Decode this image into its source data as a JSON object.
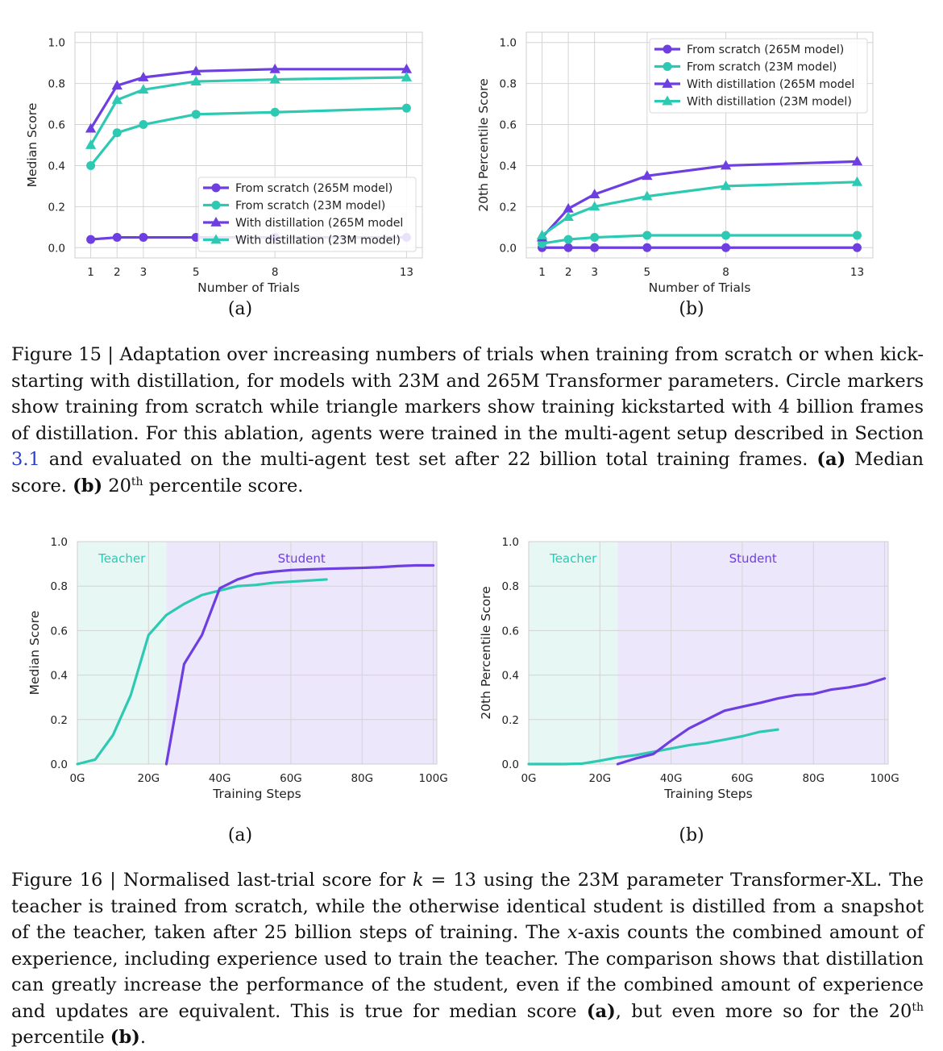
{
  "colors": {
    "purple": "#6e3fe0",
    "teal": "#2ec9b3",
    "teacher_bg": "#e6f7f4",
    "student_bg": "#ede7fb"
  },
  "figure15": {
    "caption": {
      "label": "Figure 15",
      "sep": " | ",
      "text": "Adaptation over increasing numbers of trials when training from scratch or when kick-starting with distillation, for models with 23M and 265M Transformer parameters. Circle markers show training from scratch while triangle markers show training kickstarted with 4 billion frames of distillation. For this ablation, agents were trained in the multi-agent setup described in Section ",
      "ref": "3.1",
      "text2": " and evaluated on the multi-agent test set after 22 billion total training frames. ",
      "a_label": "(a)",
      "a_text": " Median score. ",
      "b_label": "(b)",
      "b_text_pre": " 20",
      "b_sup": "th",
      "b_text_post": " percentile score."
    },
    "panel_a_label": "(a)",
    "panel_b_label": "(b)"
  },
  "figure16": {
    "caption": {
      "p1": "Figure 16 | Normalised last-trial score for ",
      "k": "k",
      "p2": " = 13 using the 23M parameter Transformer-XL. The teacher is trained from scratch, while the otherwise identical student is distilled from a snapshot of the teacher, taken after 25 billion steps of training. The ",
      "x": "x",
      "p3": "-axis counts the combined amount of experience, including experience used to train the teacher. The comparison shows that distillation can greatly increase the performance of the student, even if the combined amount of experience and updates are equivalent. This is true for median score ",
      "a": "(a)",
      "p4": ", but even more so for the 20",
      "sup": "th",
      "p5": " percentile ",
      "b": "(b)",
      "p6": "."
    },
    "panel_a_label": "(a)",
    "panel_b_label": "(b)"
  },
  "chart_data": [
    {
      "id": "fig15a",
      "type": "line",
      "xlabel": "Number of Trials",
      "ylabel": "Median Score",
      "x": [
        1,
        2,
        3,
        5,
        8,
        13
      ],
      "xticks": [
        1,
        2,
        3,
        5,
        8,
        13
      ],
      "xlim": [
        0.4,
        13.6
      ],
      "ylim": [
        -0.05,
        1.05
      ],
      "yticks": [
        "0.0",
        "0.2",
        "0.4",
        "0.6",
        "0.8",
        "1.0"
      ],
      "grid": true,
      "legend_position": "lower-right",
      "series": [
        {
          "name": "From scratch (265M model)",
          "marker": "circle",
          "color": "#6e3fe0",
          "values": [
            0.04,
            0.05,
            0.05,
            0.05,
            0.05,
            0.05
          ]
        },
        {
          "name": "From scratch (23M model)",
          "marker": "circle",
          "color": "#2ec9b3",
          "values": [
            0.4,
            0.56,
            0.6,
            0.65,
            0.66,
            0.68
          ]
        },
        {
          "name": "With distillation (265M model",
          "marker": "triangle",
          "color": "#6e3fe0",
          "values": [
            0.58,
            0.79,
            0.83,
            0.86,
            0.87,
            0.87
          ]
        },
        {
          "name": "With distillation (23M model)",
          "marker": "triangle",
          "color": "#2ec9b3",
          "values": [
            0.5,
            0.72,
            0.77,
            0.81,
            0.82,
            0.83
          ]
        }
      ]
    },
    {
      "id": "fig15b",
      "type": "line",
      "xlabel": "Number of Trials",
      "ylabel": "20th Percentile Score",
      "x": [
        1,
        2,
        3,
        5,
        8,
        13
      ],
      "xticks": [
        1,
        2,
        3,
        5,
        8,
        13
      ],
      "xlim": [
        0.4,
        13.6
      ],
      "ylim": [
        -0.05,
        1.05
      ],
      "yticks": [
        "0.0",
        "0.2",
        "0.4",
        "0.6",
        "0.8",
        "1.0"
      ],
      "grid": true,
      "legend_position": "upper-right",
      "series": [
        {
          "name": "From scratch (265M model)",
          "marker": "circle",
          "color": "#6e3fe0",
          "values": [
            0.0,
            0.0,
            0.0,
            0.0,
            0.0,
            0.0
          ]
        },
        {
          "name": "From scratch (23M model)",
          "marker": "circle",
          "color": "#2ec9b3",
          "values": [
            0.02,
            0.04,
            0.05,
            0.06,
            0.06,
            0.06
          ]
        },
        {
          "name": "With distillation (265M model",
          "marker": "triangle",
          "color": "#6e3fe0",
          "values": [
            0.05,
            0.19,
            0.26,
            0.35,
            0.4,
            0.42
          ]
        },
        {
          "name": "With distillation (23M model)",
          "marker": "triangle",
          "color": "#2ec9b3",
          "values": [
            0.06,
            0.15,
            0.2,
            0.25,
            0.3,
            0.32
          ]
        }
      ]
    },
    {
      "id": "fig16a",
      "type": "line",
      "xlabel": "Training Steps",
      "ylabel": "Median Score",
      "xlim": [
        0,
        101
      ],
      "ylim": [
        0,
        1.0
      ],
      "xticks": [
        0,
        20,
        40,
        60,
        80,
        100
      ],
      "xticklabels": [
        "0G",
        "20G",
        "40G",
        "60G",
        "80G",
        "100G"
      ],
      "yticks": [
        "0.0",
        "0.2",
        "0.4",
        "0.6",
        "0.8",
        "1.0"
      ],
      "grid": true,
      "regions": [
        {
          "label": "Teacher",
          "from": 0,
          "to": 25,
          "color": "#e6f7f4",
          "text_color": "#2ec9b3"
        },
        {
          "label": "Student",
          "from": 25,
          "to": 101,
          "color": "#ede7fb",
          "text_color": "#6e3fe0"
        }
      ],
      "series": [
        {
          "color": "#2ec9b3",
          "x": [
            0,
            5,
            10,
            15,
            20,
            25,
            30,
            35,
            40,
            45,
            50,
            55,
            60,
            65,
            70
          ],
          "values": [
            0.0,
            0.02,
            0.13,
            0.31,
            0.58,
            0.67,
            0.72,
            0.76,
            0.78,
            0.8,
            0.805,
            0.815,
            0.82,
            0.825,
            0.83
          ]
        },
        {
          "color": "#6e3fe0",
          "x": [
            25,
            30,
            35,
            40,
            45,
            50,
            55,
            60,
            65,
            70,
            75,
            80,
            85,
            90,
            95,
            100
          ],
          "values": [
            0.0,
            0.45,
            0.58,
            0.79,
            0.83,
            0.855,
            0.865,
            0.872,
            0.875,
            0.878,
            0.88,
            0.882,
            0.885,
            0.89,
            0.893,
            0.893
          ]
        }
      ]
    },
    {
      "id": "fig16b",
      "type": "line",
      "xlabel": "Training Steps",
      "ylabel": "20th Percentile Score",
      "xlim": [
        0,
        101
      ],
      "ylim": [
        0,
        1.0
      ],
      "xticks": [
        0,
        20,
        40,
        60,
        80,
        100
      ],
      "xticklabels": [
        "0G",
        "20G",
        "40G",
        "60G",
        "80G",
        "100G"
      ],
      "yticks": [
        "0.0",
        "0.2",
        "0.4",
        "0.6",
        "0.8",
        "1.0"
      ],
      "grid": true,
      "regions": [
        {
          "label": "Teacher",
          "from": 0,
          "to": 25,
          "color": "#e6f7f4",
          "text_color": "#2ec9b3"
        },
        {
          "label": "Student",
          "from": 25,
          "to": 101,
          "color": "#ede7fb",
          "text_color": "#6e3fe0"
        }
      ],
      "series": [
        {
          "color": "#2ec9b3",
          "x": [
            0,
            5,
            10,
            15,
            20,
            25,
            30,
            35,
            40,
            45,
            50,
            55,
            60,
            65,
            70
          ],
          "values": [
            0.0,
            0.0,
            0.0,
            0.002,
            0.015,
            0.03,
            0.04,
            0.055,
            0.07,
            0.085,
            0.095,
            0.11,
            0.125,
            0.145,
            0.155
          ]
        },
        {
          "color": "#6e3fe0",
          "x": [
            25,
            30,
            35,
            40,
            45,
            50,
            55,
            60,
            65,
            70,
            75,
            80,
            85,
            90,
            95,
            100
          ],
          "values": [
            0.0,
            0.025,
            0.045,
            0.105,
            0.16,
            0.2,
            0.24,
            0.258,
            0.275,
            0.295,
            0.31,
            0.315,
            0.335,
            0.345,
            0.36,
            0.385
          ]
        }
      ]
    }
  ]
}
